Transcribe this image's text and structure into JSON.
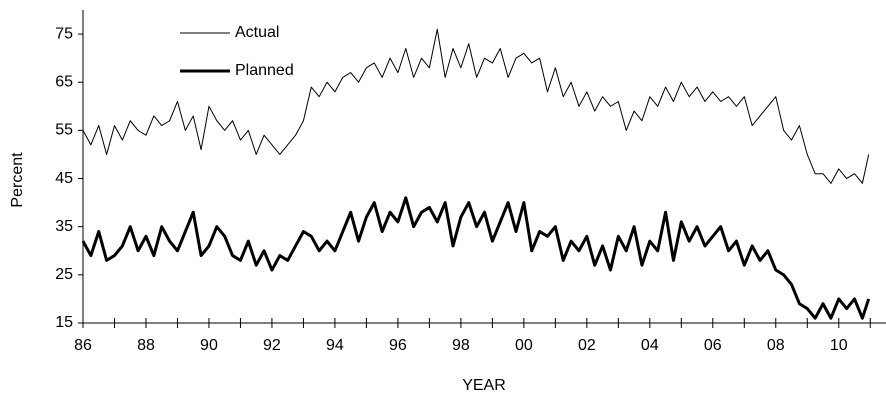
{
  "chart_data": {
    "type": "line",
    "x_label": "YEAR",
    "y_label": "Percent",
    "x": [
      1986,
      1986.25,
      1986.5,
      1986.75,
      1987,
      1987.25,
      1987.5,
      1987.75,
      1988,
      1988.25,
      1988.5,
      1988.75,
      1989,
      1989.25,
      1989.5,
      1989.75,
      1990,
      1990.25,
      1990.5,
      1990.75,
      1991,
      1991.25,
      1991.5,
      1991.75,
      1992,
      1992.25,
      1992.5,
      1992.75,
      1993,
      1993.25,
      1993.5,
      1993.75,
      1994,
      1994.25,
      1994.5,
      1994.75,
      1995,
      1995.25,
      1995.5,
      1995.75,
      1996,
      1996.25,
      1996.5,
      1996.75,
      1997,
      1997.25,
      1997.5,
      1997.75,
      1998,
      1998.25,
      1998.5,
      1998.75,
      1999,
      1999.25,
      1999.5,
      1999.75,
      2000,
      2000.25,
      2000.5,
      2000.75,
      2001,
      2001.25,
      2001.5,
      2001.75,
      2002,
      2002.25,
      2002.5,
      2002.75,
      2003,
      2003.25,
      2003.5,
      2003.75,
      2004,
      2004.25,
      2004.5,
      2004.75,
      2005,
      2005.25,
      2005.5,
      2005.75,
      2006,
      2006.25,
      2006.5,
      2006.75,
      2007,
      2007.25,
      2007.5,
      2007.75,
      2008,
      2008.25,
      2008.5,
      2008.75,
      2009,
      2009.25,
      2009.5,
      2009.75,
      2010,
      2010.25,
      2010.5,
      2010.75,
      2010.95
    ],
    "series": [
      {
        "name": "Actual",
        "color": "#000000",
        "width": 1,
        "values": [
          55,
          52,
          56,
          50,
          56,
          53,
          57,
          55,
          54,
          58,
          56,
          57,
          61,
          55,
          58,
          51,
          60,
          57,
          55,
          57,
          53,
          55,
          50,
          54,
          52,
          50,
          52,
          54,
          57,
          64,
          62,
          65,
          63,
          66,
          67,
          65,
          68,
          69,
          66,
          70,
          67,
          72,
          66,
          70,
          68,
          76,
          66,
          72,
          68,
          73,
          66,
          70,
          69,
          72,
          66,
          70,
          71,
          69,
          70,
          63,
          68,
          62,
          65,
          60,
          63,
          59,
          62,
          60,
          61,
          55,
          59,
          57,
          62,
          60,
          64,
          61,
          65,
          62,
          64,
          61,
          63,
          61,
          62,
          60,
          62,
          56,
          58,
          60,
          62,
          55,
          53,
          56,
          50,
          46,
          46,
          44,
          47,
          45,
          46,
          44,
          50
        ]
      },
      {
        "name": "Planned",
        "color": "#000000",
        "width": 3,
        "values": [
          32,
          29,
          34,
          28,
          29,
          31,
          35,
          30,
          33,
          29,
          35,
          32,
          30,
          34,
          38,
          29,
          31,
          35,
          33,
          29,
          28,
          32,
          27,
          30,
          26,
          29,
          28,
          31,
          34,
          33,
          30,
          32,
          30,
          34,
          38,
          32,
          37,
          40,
          34,
          38,
          36,
          41,
          35,
          38,
          39,
          36,
          40,
          31,
          37,
          40,
          35,
          38,
          32,
          36,
          40,
          34,
          40,
          30,
          34,
          33,
          35,
          28,
          32,
          30,
          33,
          27,
          31,
          26,
          33,
          30,
          35,
          27,
          32,
          30,
          38,
          28,
          36,
          32,
          35,
          31,
          33,
          35,
          30,
          32,
          27,
          31,
          28,
          30,
          26,
          25,
          23,
          19,
          18,
          16,
          19,
          16,
          20,
          18,
          20,
          16,
          20
        ]
      }
    ],
    "xlim": [
      1986,
      2011.5
    ],
    "xticks": [
      {
        "value": 1986,
        "label": "86"
      },
      {
        "value": 1988,
        "label": "88"
      },
      {
        "value": 1990,
        "label": "90"
      },
      {
        "value": 1992,
        "label": "92"
      },
      {
        "value": 1994,
        "label": "94"
      },
      {
        "value": 1996,
        "label": "96"
      },
      {
        "value": 1998,
        "label": "98"
      },
      {
        "value": 2000,
        "label": "00"
      },
      {
        "value": 2002,
        "label": "02"
      },
      {
        "value": 2004,
        "label": "04"
      },
      {
        "value": 2006,
        "label": "06"
      },
      {
        "value": 2008,
        "label": "08"
      },
      {
        "value": 2010,
        "label": "10"
      }
    ],
    "ylim": [
      15,
      80
    ],
    "yticks": [
      15,
      25,
      35,
      45,
      55,
      65,
      75
    ],
    "legend": "upper left"
  }
}
